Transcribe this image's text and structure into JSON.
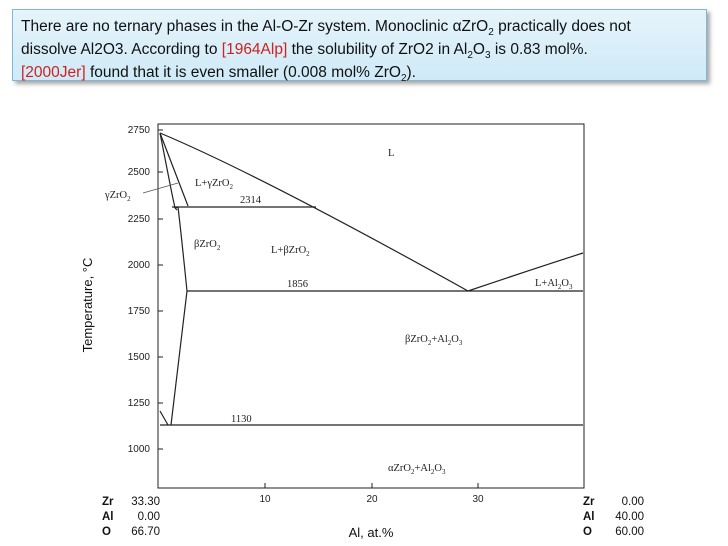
{
  "callout": {
    "line1_a": "There are no ternary phases in the Al-O-Zr system. Monoclinic αZrO",
    "line1_sub": "2",
    "line1_b": " practically does not",
    "line2_a": "dissolve Al2O3. According to ",
    "ref1": "[1964Alp]",
    "line2_b": " the solubility of ZrO2 in Al",
    "line2_sub1": "2",
    "line2_c": "O",
    "line2_sub2": "3",
    "line2_d": " is 0.83 mol%.",
    "ref2": "[2000Jer]",
    "line3_a": " found that it is even smaller (0.008 mol% ZrO",
    "line3_sub": "2",
    "line3_b": ")."
  },
  "diagram": {
    "y_axis_label": "Temperature, °C",
    "x_axis_label": "Al, at.%",
    "y_ticks": [
      "2750",
      "2500",
      "2250",
      "2000",
      "1750",
      "1500",
      "1250",
      "1000"
    ],
    "x_ticks": [
      "10",
      "20",
      "30"
    ],
    "isotherms": [
      "2314",
      "1856",
      "1130"
    ],
    "regions": {
      "liquid": "L",
      "l_gamma": {
        "pre": "L+γZrO",
        "sub": "2"
      },
      "gamma": {
        "pre": "γZrO",
        "sub": "2"
      },
      "beta": {
        "pre": "βZrO",
        "sub": "2"
      },
      "l_beta": {
        "pre": "L+βZrO",
        "sub": "2"
      },
      "l_al2o3": {
        "pre": "L+Al",
        "sub1": "2",
        "mid": "O",
        "sub2": "3"
      },
      "beta_al2o3": {
        "pre": "βZrO",
        "sub1": "2",
        "mid": "+Al",
        "sub2": "2",
        "mid2": "O",
        "sub3": "3"
      },
      "alpha_al2o3": {
        "pre": "αZrO",
        "sub1": "2",
        "mid": "+Al",
        "sub2": "2",
        "mid2": "O",
        "sub3": "3"
      }
    },
    "left_composition": [
      {
        "el": "Zr",
        "val": "33.30"
      },
      {
        "el": "Al",
        "val": "0.00"
      },
      {
        "el": "O",
        "val": "66.70"
      }
    ],
    "right_composition": [
      {
        "el": "Zr",
        "val": "0.00"
      },
      {
        "el": "Al",
        "val": "40.00"
      },
      {
        "el": "O",
        "val": "60.00"
      }
    ]
  }
}
